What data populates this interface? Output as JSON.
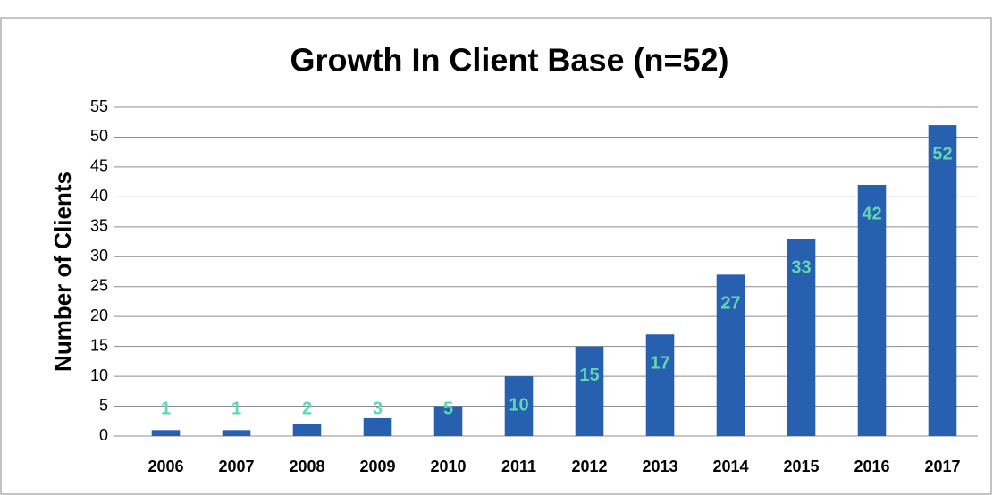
{
  "chart_data": {
    "type": "bar",
    "title": "Growth In Client Base (n=52)",
    "y_label": "Number of Clients",
    "categories": [
      "2006",
      "2007",
      "2008",
      "2009",
      "2010",
      "2011",
      "2012",
      "2013",
      "2014",
      "2015",
      "2016",
      "2017"
    ],
    "values": [
      1,
      1,
      2,
      3,
      5,
      10,
      15,
      17,
      27,
      33,
      42,
      52
    ],
    "color": "#2860b0",
    "label_color": "#5fd6b4",
    "ylim": [
      0,
      55
    ],
    "yticks": [
      0,
      5,
      10,
      15,
      20,
      25,
      30,
      35,
      40,
      45,
      50,
      55
    ],
    "grid": true
  }
}
